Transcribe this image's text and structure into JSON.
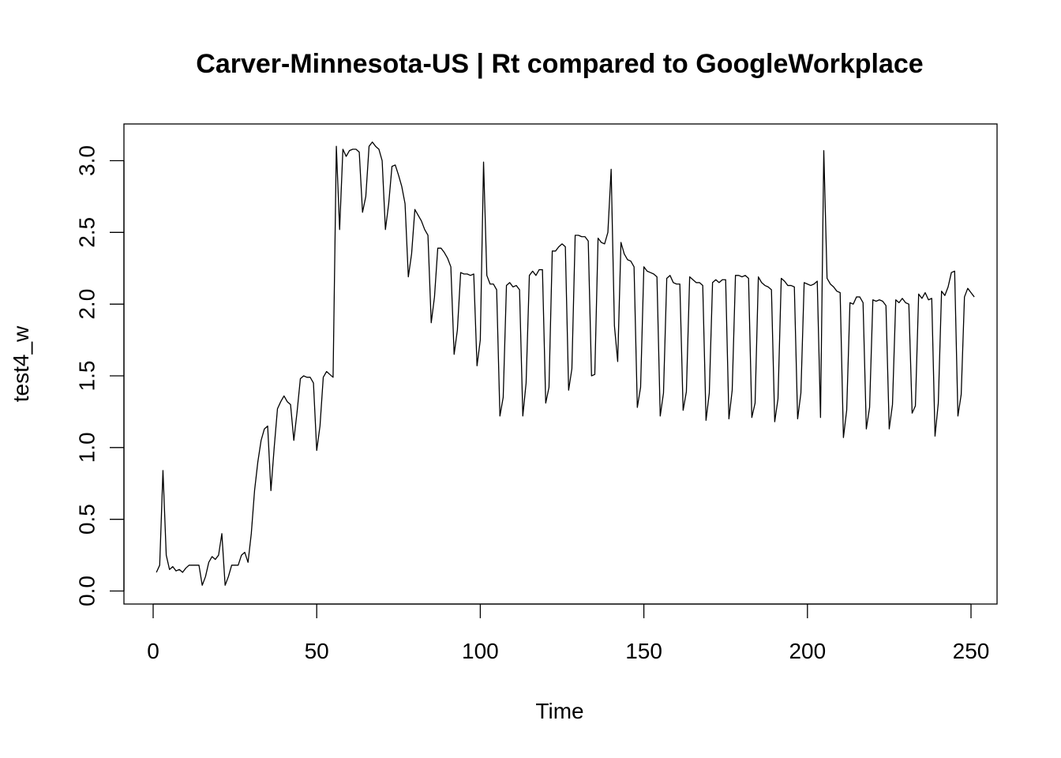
{
  "chart_data": {
    "type": "line",
    "title": "Carver-Minnesota-US | Rt compared to GoogleWorkplace",
    "xlabel": "Time",
    "ylabel": "test4_w",
    "xlim": [
      0,
      250
    ],
    "ylim": [
      0,
      3.1
    ],
    "xticks": [
      0,
      50,
      100,
      150,
      200,
      250
    ],
    "xtick_labels": [
      "0",
      "50",
      "100",
      "150",
      "200",
      "250"
    ],
    "yticks": [
      0,
      0.5,
      1,
      1.5,
      2,
      2.5,
      3
    ],
    "ytick_labels": [
      "0.0",
      "0.5",
      "1.0",
      "1.5",
      "2.0",
      "2.5",
      "3.0"
    ],
    "grid": false,
    "series": [
      {
        "values": [
          0.13,
          0.18,
          0.84,
          0.25,
          0.15,
          0.17,
          0.14,
          0.15,
          0.13,
          0.16,
          0.18,
          0.18,
          0.18,
          0.18,
          0.04,
          0.1,
          0.2,
          0.24,
          0.22,
          0.25,
          0.4,
          0.04,
          0.1,
          0.18,
          0.18,
          0.18,
          0.25,
          0.27,
          0.2,
          0.4,
          0.7,
          0.9,
          1.05,
          1.13,
          1.15,
          0.7,
          1.0,
          1.27,
          1.32,
          1.36,
          1.32,
          1.3,
          1.05,
          1.25,
          1.48,
          1.5,
          1.49,
          1.49,
          1.45,
          0.98,
          1.15,
          1.49,
          1.53,
          1.51,
          1.49,
          3.1,
          2.52,
          3.08,
          3.03,
          3.07,
          3.08,
          3.08,
          3.06,
          2.64,
          2.75,
          3.1,
          3.13,
          3.1,
          3.08,
          3.0,
          2.52,
          2.7,
          2.96,
          2.97,
          2.9,
          2.82,
          2.7,
          2.19,
          2.35,
          2.66,
          2.62,
          2.58,
          2.52,
          2.48,
          1.87,
          2.05,
          2.39,
          2.39,
          2.36,
          2.32,
          2.26,
          1.65,
          1.82,
          2.22,
          2.21,
          2.21,
          2.2,
          2.21,
          1.57,
          1.75,
          2.99,
          2.2,
          2.14,
          2.14,
          2.1,
          1.22,
          1.35,
          2.13,
          2.15,
          2.12,
          2.13,
          2.1,
          1.22,
          1.45,
          2.2,
          2.23,
          2.2,
          2.24,
          2.24,
          1.31,
          1.42,
          2.37,
          2.37,
          2.4,
          2.42,
          2.4,
          1.4,
          1.55,
          2.48,
          2.48,
          2.47,
          2.47,
          2.44,
          1.5,
          1.51,
          2.46,
          2.43,
          2.42,
          2.5,
          2.94,
          1.85,
          1.6,
          2.43,
          2.35,
          2.31,
          2.3,
          2.26,
          1.28,
          1.42,
          2.26,
          2.23,
          2.22,
          2.21,
          2.19,
          1.22,
          1.38,
          2.18,
          2.2,
          2.15,
          2.14,
          2.14,
          1.26,
          1.39,
          2.19,
          2.17,
          2.15,
          2.15,
          2.13,
          1.19,
          1.38,
          2.15,
          2.17,
          2.15,
          2.17,
          2.17,
          1.2,
          1.4,
          2.2,
          2.2,
          2.19,
          2.2,
          2.18,
          1.21,
          1.31,
          2.19,
          2.15,
          2.13,
          2.12,
          2.1,
          1.18,
          1.34,
          2.18,
          2.16,
          2.13,
          2.13,
          2.12,
          1.2,
          1.38,
          2.15,
          2.14,
          2.13,
          2.14,
          2.16,
          1.21,
          3.07,
          2.18,
          2.14,
          2.12,
          2.09,
          2.08,
          1.07,
          1.26,
          2.01,
          2.0,
          2.05,
          2.05,
          2.01,
          1.13,
          1.28,
          2.03,
          2.02,
          2.03,
          2.02,
          1.99,
          1.13,
          1.3,
          2.03,
          2.01,
          2.04,
          2.01,
          2.0,
          1.24,
          1.29,
          2.07,
          2.04,
          2.08,
          2.03,
          2.04,
          1.08,
          1.31,
          2.09,
          2.06,
          2.12,
          2.22,
          2.23,
          1.22,
          1.37,
          2.05,
          2.11,
          2.08,
          2.05
        ]
      }
    ]
  }
}
